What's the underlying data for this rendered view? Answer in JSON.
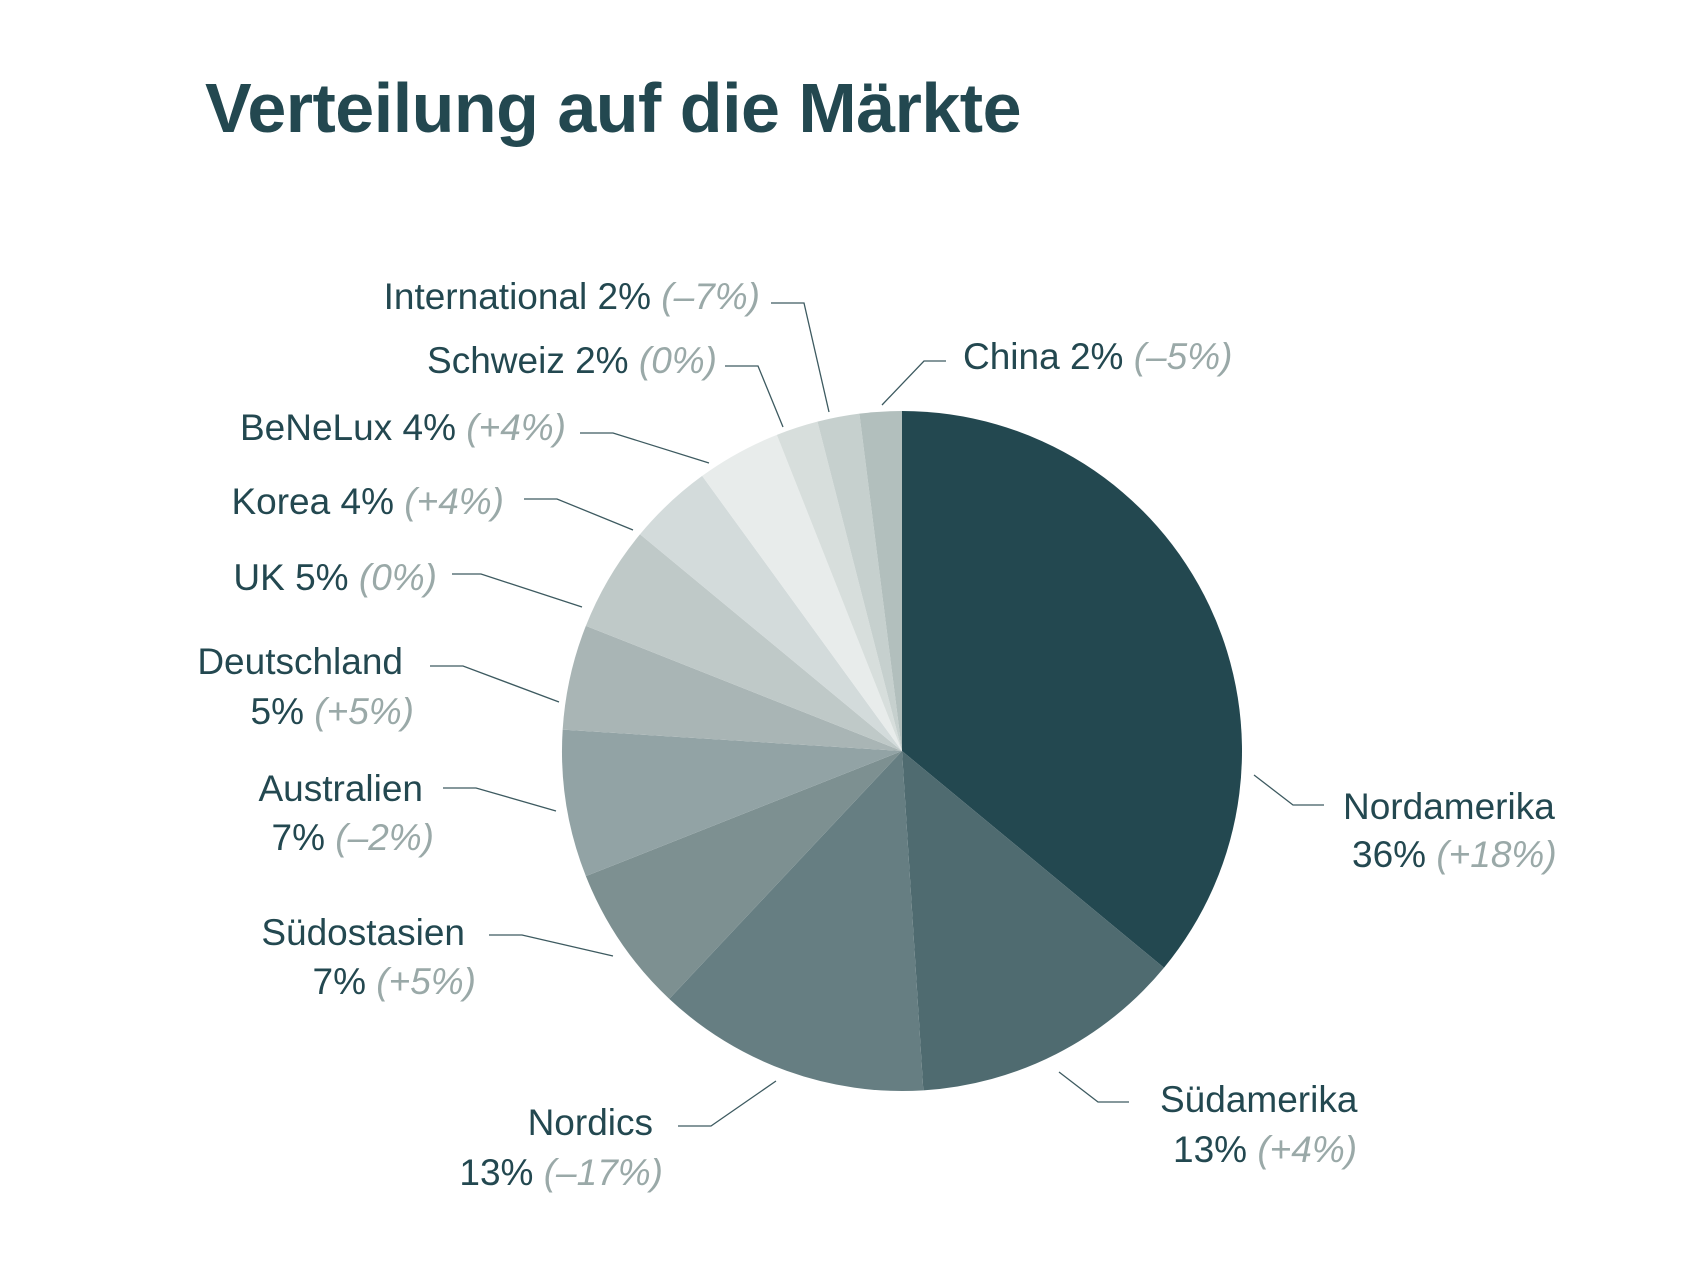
{
  "chart_data": {
    "type": "pie",
    "title": "Verteilung auf die Märkte",
    "start": "top",
    "direction": "clockwise",
    "slices": [
      {
        "label": "Nordamerika",
        "value": 36,
        "value_text": "36%",
        "change": "(+18%)",
        "color": "#234850"
      },
      {
        "label": "Südamerika",
        "value": 13,
        "value_text": "13%",
        "change": "(+4%)",
        "color": "#4f6b70"
      },
      {
        "label": "Nordics",
        "value": 13,
        "value_text": "13%",
        "change": "(–17%)",
        "color": "#667e82"
      },
      {
        "label": "Südostasien",
        "value": 7,
        "value_text": "7%",
        "change": "(+5%)",
        "color": "#7d9091"
      },
      {
        "label": "Australien",
        "value": 7,
        "value_text": "7%",
        "change": "(–2%)",
        "color": "#92a3a5"
      },
      {
        "label": "Deutschland",
        "value": 5,
        "value_text": "5%",
        "change": "(+5%)",
        "color": "#a9b5b5"
      },
      {
        "label": "UK",
        "value": 5,
        "value_text": "5%",
        "change": "(0%)",
        "color": "#bfc9c8"
      },
      {
        "label": "Korea",
        "value": 4,
        "value_text": "4%",
        "change": "(+4%)",
        "color": "#d3dbdb"
      },
      {
        "label": "BeNeLux",
        "value": 4,
        "value_text": "4%",
        "change": "(+4%)",
        "color": "#e8eceb"
      },
      {
        "label": "Schweiz",
        "value": 2,
        "value_text": "2%",
        "change": "(0%)",
        "color": "#d7dedc"
      },
      {
        "label": "International",
        "value": 2,
        "value_text": "2%",
        "change": "(–7%)",
        "color": "#c6d0ce"
      },
      {
        "label": "China",
        "value": 2,
        "value_text": "2%",
        "change": "(–5%)",
        "color": "#b2bfbd"
      }
    ]
  }
}
